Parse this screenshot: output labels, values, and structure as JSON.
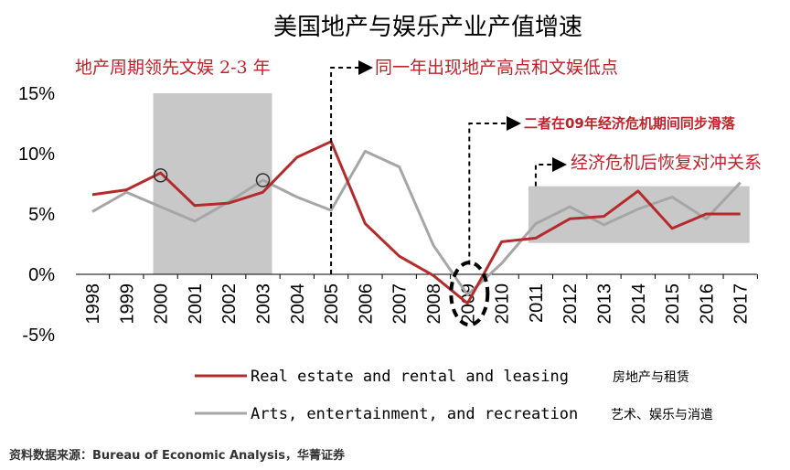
{
  "chart_data": {
    "type": "line",
    "title": "美国地产与娱乐产业产值增速",
    "x": [
      "1998",
      "1999",
      "2000",
      "2001",
      "2002",
      "2003",
      "2004",
      "2005",
      "2006",
      "2007",
      "2008",
      "2009",
      "2010",
      "2011",
      "2012",
      "2013",
      "2014",
      "2015",
      "2016",
      "2017"
    ],
    "series": [
      {
        "name": "Real estate and rental and leasing",
        "name_cn": "房地产与租赁",
        "color": "#b52b2b",
        "values": [
          6.6,
          7.0,
          8.4,
          5.7,
          5.9,
          6.8,
          9.7,
          11.0,
          4.2,
          1.5,
          -0.1,
          -2.4,
          2.7,
          3.0,
          4.6,
          4.8,
          6.9,
          3.8,
          5.0,
          5.0
        ]
      },
      {
        "name": "Arts, entertainment, and recreation",
        "name_cn": "艺术、娱乐与消遣",
        "color": "#a6a6a6",
        "values": [
          5.2,
          6.8,
          5.6,
          4.4,
          6.0,
          7.8,
          6.4,
          5.3,
          10.2,
          8.9,
          2.4,
          -1.7,
          0.9,
          4.2,
          5.6,
          4.1,
          5.4,
          6.4,
          4.6,
          7.6
        ]
      }
    ],
    "ylim": [
      -5,
      15
    ],
    "yticks": [
      {
        "value": 15,
        "label": "15%"
      },
      {
        "value": 10,
        "label": "10%"
      },
      {
        "value": 5,
        "label": "5%"
      },
      {
        "value": 0,
        "label": "0%"
      },
      {
        "value": -5,
        "label": "-5%"
      }
    ],
    "legend_placement": "bottom",
    "shaded_regions": [
      {
        "x_from": "2000",
        "x_to": "2003"
      },
      {
        "x_from": "2011",
        "x_to": "2017"
      }
    ],
    "annotations": [
      {
        "text": "地产周期领先文娱 2-3 年",
        "x": "1998"
      },
      {
        "text": "同一年出现地产高点和文娱低点",
        "x": "2005"
      },
      {
        "text": "二者在09年经济危机期间同步滑落",
        "x": "2009"
      },
      {
        "text": "经济危机后恢复对冲关系",
        "x": "2011"
      }
    ],
    "source": "资料数据来源：Bureau of Economic Analysis，华菁证券"
  }
}
